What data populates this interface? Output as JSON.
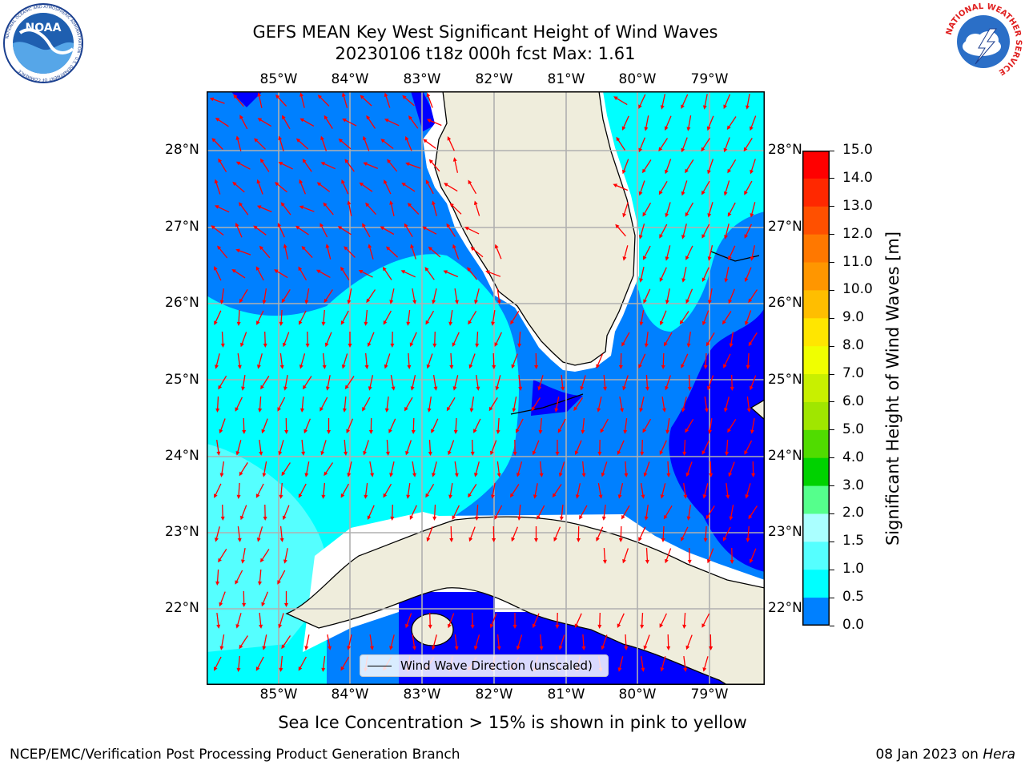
{
  "title": {
    "line1": "GEFS MEAN Key West Significant Height of Wind Waves",
    "line2": "20230106 t18z 000h fcst   Max: 1.61"
  },
  "map": {
    "lon_labels": [
      "85°W",
      "84°W",
      "83°W",
      "82°W",
      "81°W",
      "80°W",
      "79°W"
    ],
    "lat_labels": [
      "28°N",
      "27°N",
      "26°N",
      "25°N",
      "24°N",
      "23°N",
      "22°N"
    ],
    "legend_label": "Wind Wave Direction (unscaled)",
    "arrow_color": "#ff0000",
    "land_color": "#efeddc"
  },
  "colorbar": {
    "label": "Significant Height of Wind Waves [m]",
    "ticks": [
      "15.0",
      "14.0",
      "13.0",
      "12.0",
      "11.0",
      "10.0",
      "9.0",
      "8.0",
      "7.0",
      "6.0",
      "5.0",
      "4.0",
      "3.0",
      "2.0",
      "1.5",
      "1.0",
      "0.5",
      "0.0"
    ],
    "colors": [
      "#ff0000",
      "#ff2800",
      "#ff5000",
      "#ff7800",
      "#ff9600",
      "#ffbe00",
      "#ffe600",
      "#f0ff00",
      "#c8f000",
      "#a0e600",
      "#50dc00",
      "#00d200",
      "#55ff8c",
      "#aaffff",
      "#55ffff",
      "#00ffff",
      "#0080ff",
      "#0000ff"
    ]
  },
  "logos": {
    "noaa_text": "NOAA",
    "noaa_ring": "NATIONAL OCEANIC AND ATMOSPHERIC ADMINISTRATION · U.S. DEPARTMENT OF COMMERCE",
    "nws_ring": "NATIONAL WEATHER SERVICE"
  },
  "note": "Sea Ice Concentration > 15% is shown in pink to yellow",
  "footer": {
    "left": "NCEP/EMC/Verification Post Processing Product Generation Branch",
    "date": "08 Jan 2023 on ",
    "machine": "Hera"
  }
}
